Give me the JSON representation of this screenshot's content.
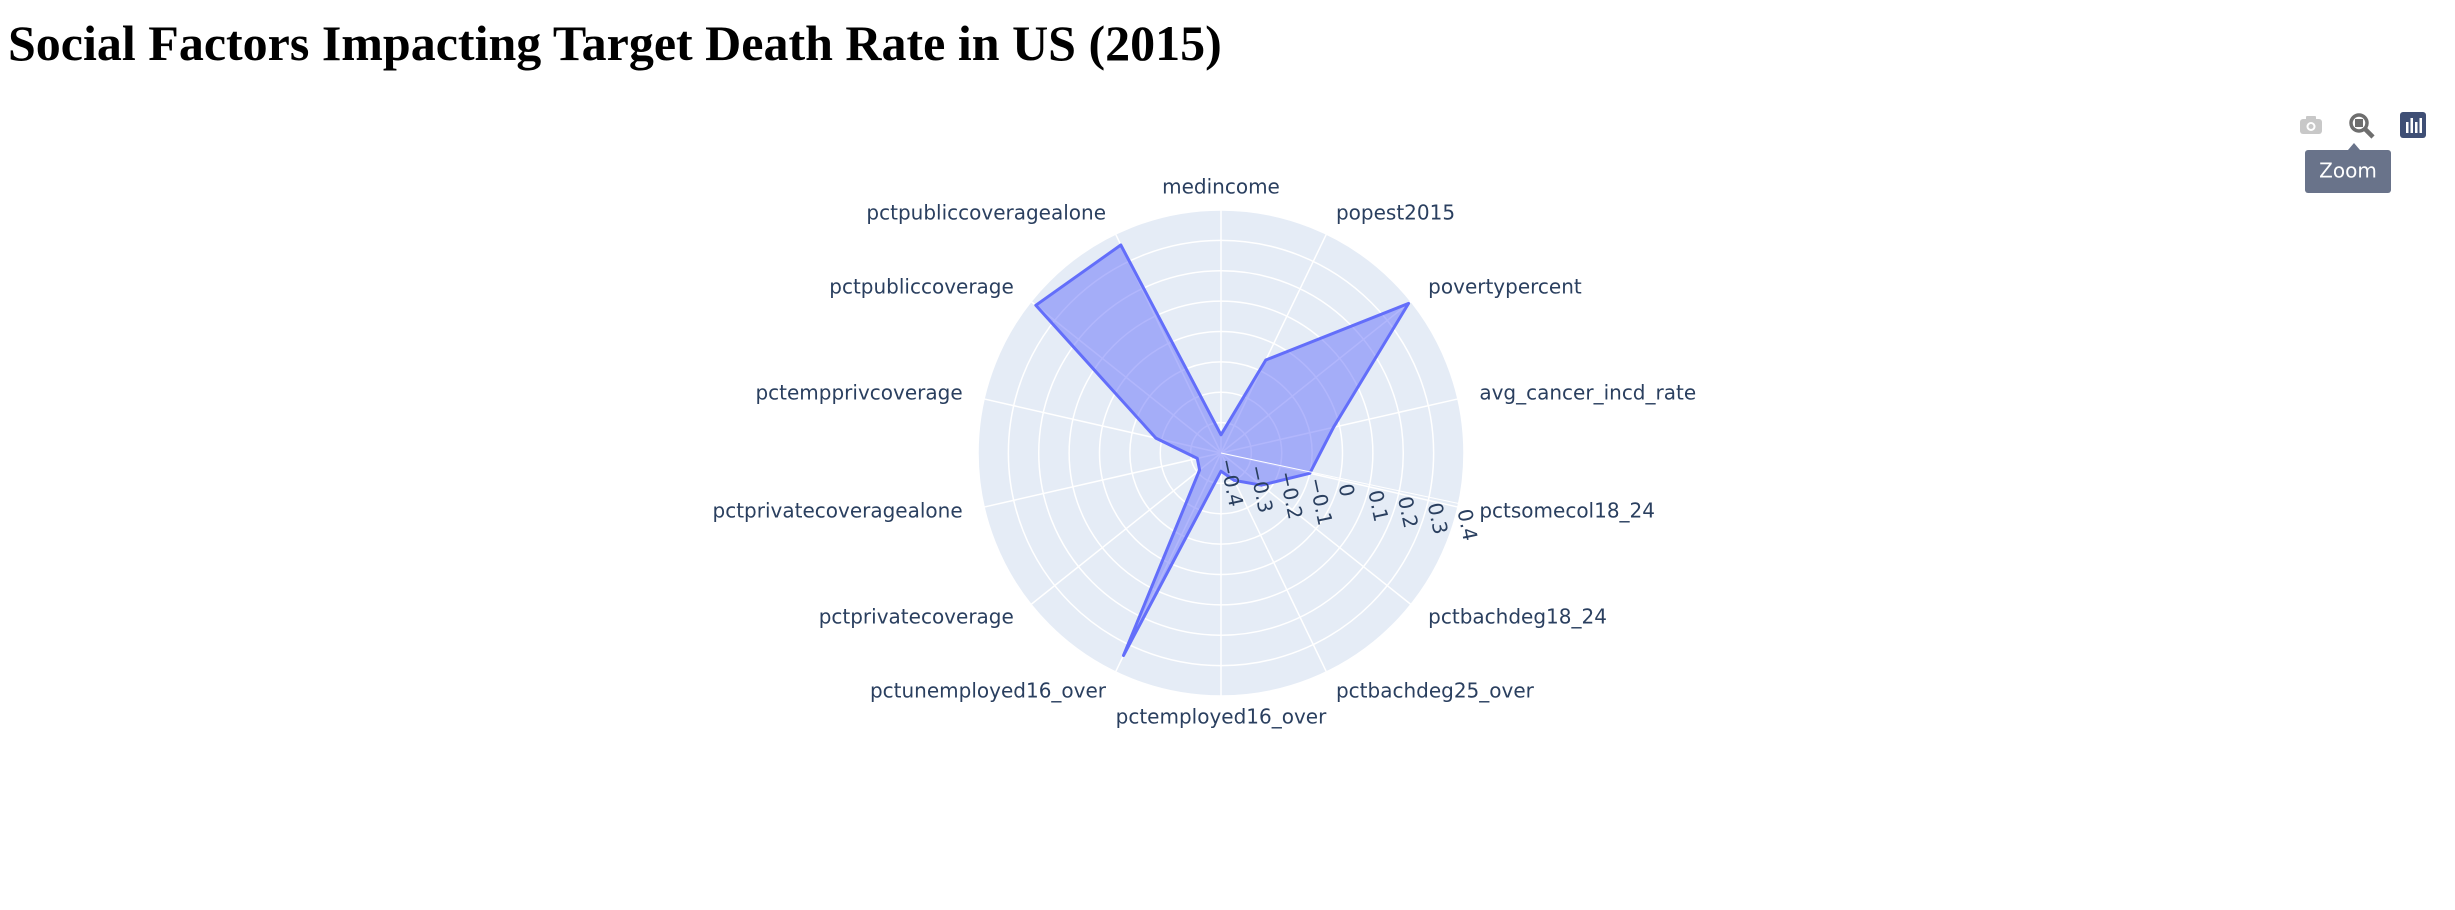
{
  "chart_data": {
    "type": "radar",
    "title": "Social Factors Impacting Target Death Rate in US (2015)",
    "categories": [
      "medincome",
      "popest2015",
      "povertypercent",
      "avg_cancer_incd_rate",
      "pctsomecol18_24",
      "pctbachdeg18_24",
      "pctbachdeg25_over",
      "pctemployed16_over",
      "pctunemployed16_over",
      "pctprivatecoverage",
      "pctprivatecoveragealone",
      "pctempprivcoverage",
      "pctpubliccoverage",
      "pctpubliccoveragealone"
    ],
    "values": [
      -0.34,
      -0.06,
      0.39,
      -0.02,
      -0.1,
      -0.23,
      -0.3,
      -0.34,
      0.34,
      -0.31,
      -0.32,
      -0.18,
      0.38,
      0.36
    ],
    "color": "#636efa",
    "rlim": [
      -0.4,
      0.4
    ],
    "rticks": [
      {
        "value": -0.4,
        "label": "−0.4"
      },
      {
        "value": -0.3,
        "label": "−0.3"
      },
      {
        "value": -0.2,
        "label": "−0.2"
      },
      {
        "value": -0.1,
        "label": "−0.1"
      },
      0,
      0.1,
      0.2,
      0.3,
      0.4
    ],
    "grid": true
  },
  "toolbar": {
    "tooltip": "Zoom"
  }
}
